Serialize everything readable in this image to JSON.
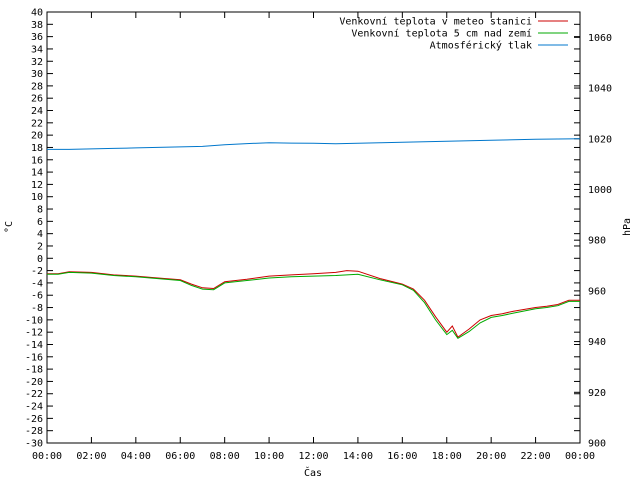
{
  "chart_data": {
    "type": "line",
    "xlabel": "Čas",
    "ylabel_left": "°C",
    "ylabel_right": "hPa",
    "x_ticks": [
      "00:00",
      "02:00",
      "04:00",
      "06:00",
      "08:00",
      "10:00",
      "12:00",
      "14:00",
      "16:00",
      "18:00",
      "20:00",
      "22:00",
      "00:00"
    ],
    "x_range_hours": [
      0,
      24
    ],
    "ylim_left": [
      -30,
      40
    ],
    "y_left_step": 2,
    "ylim_right": [
      900,
      1070
    ],
    "y_right_ticks": [
      900,
      920,
      940,
      960,
      980,
      1000,
      1020,
      1040,
      1060
    ],
    "grid": false,
    "legend_position": "top-right",
    "series": [
      {
        "name": "Venkovní teplota v meteo stanici",
        "axis": "left",
        "color": "#cc0000",
        "x_hours": [
          0,
          0.5,
          1,
          2,
          3,
          4,
          5,
          6,
          6.5,
          7,
          7.5,
          8,
          9,
          10,
          11,
          12,
          13,
          13.5,
          14,
          15,
          16,
          16.5,
          17,
          17.5,
          18,
          18.25,
          18.5,
          19,
          19.5,
          20,
          20.5,
          21,
          22,
          22.5,
          23,
          23.5,
          24
        ],
        "values": [
          -2.5,
          -2.5,
          -2.2,
          -2.3,
          -2.7,
          -2.9,
          -3.2,
          -3.5,
          -4.2,
          -4.8,
          -4.9,
          -3.8,
          -3.4,
          -2.9,
          -2.7,
          -2.5,
          -2.3,
          -2.0,
          -2.1,
          -3.3,
          -4.2,
          -5.0,
          -6.8,
          -9.5,
          -12.0,
          -11.0,
          -12.8,
          -11.5,
          -10.0,
          -9.3,
          -9.0,
          -8.6,
          -8.0,
          -7.8,
          -7.5,
          -6.8,
          -6.8
        ]
      },
      {
        "name": "Venkovní teplota 5 cm nad zemí",
        "axis": "left",
        "color": "#00aa00",
        "x_hours": [
          0,
          0.5,
          1,
          2,
          3,
          4,
          5,
          6,
          6.5,
          7,
          7.5,
          8,
          9,
          10,
          11,
          12,
          13,
          13.5,
          14,
          15,
          16,
          16.5,
          17,
          17.5,
          18,
          18.25,
          18.5,
          19,
          19.5,
          20,
          20.5,
          21,
          22,
          22.5,
          23,
          23.5,
          24
        ],
        "values": [
          -2.6,
          -2.6,
          -2.3,
          -2.4,
          -2.8,
          -3.0,
          -3.3,
          -3.6,
          -4.4,
          -5.0,
          -5.1,
          -4.0,
          -3.6,
          -3.2,
          -3.0,
          -2.9,
          -2.8,
          -2.7,
          -2.6,
          -3.5,
          -4.3,
          -5.2,
          -7.2,
          -10.0,
          -12.4,
          -11.7,
          -13.0,
          -11.9,
          -10.5,
          -9.6,
          -9.3,
          -8.9,
          -8.2,
          -8.0,
          -7.7,
          -7.0,
          -7.0
        ]
      },
      {
        "name": "Atmosférický tlak",
        "axis": "right",
        "color": "#0077cc",
        "x_hours": [
          0,
          1,
          2,
          3,
          4,
          5,
          6,
          7,
          8,
          9,
          10,
          11,
          12,
          13,
          14,
          15,
          16,
          17,
          18,
          19,
          20,
          21,
          22,
          23,
          24
        ],
        "values": [
          1015.8,
          1015.8,
          1016.0,
          1016.2,
          1016.4,
          1016.6,
          1016.8,
          1017.0,
          1017.6,
          1018.1,
          1018.4,
          1018.3,
          1018.2,
          1018.0,
          1018.2,
          1018.4,
          1018.6,
          1018.8,
          1019.0,
          1019.2,
          1019.4,
          1019.6,
          1019.8,
          1019.9,
          1020.0
        ]
      }
    ]
  }
}
